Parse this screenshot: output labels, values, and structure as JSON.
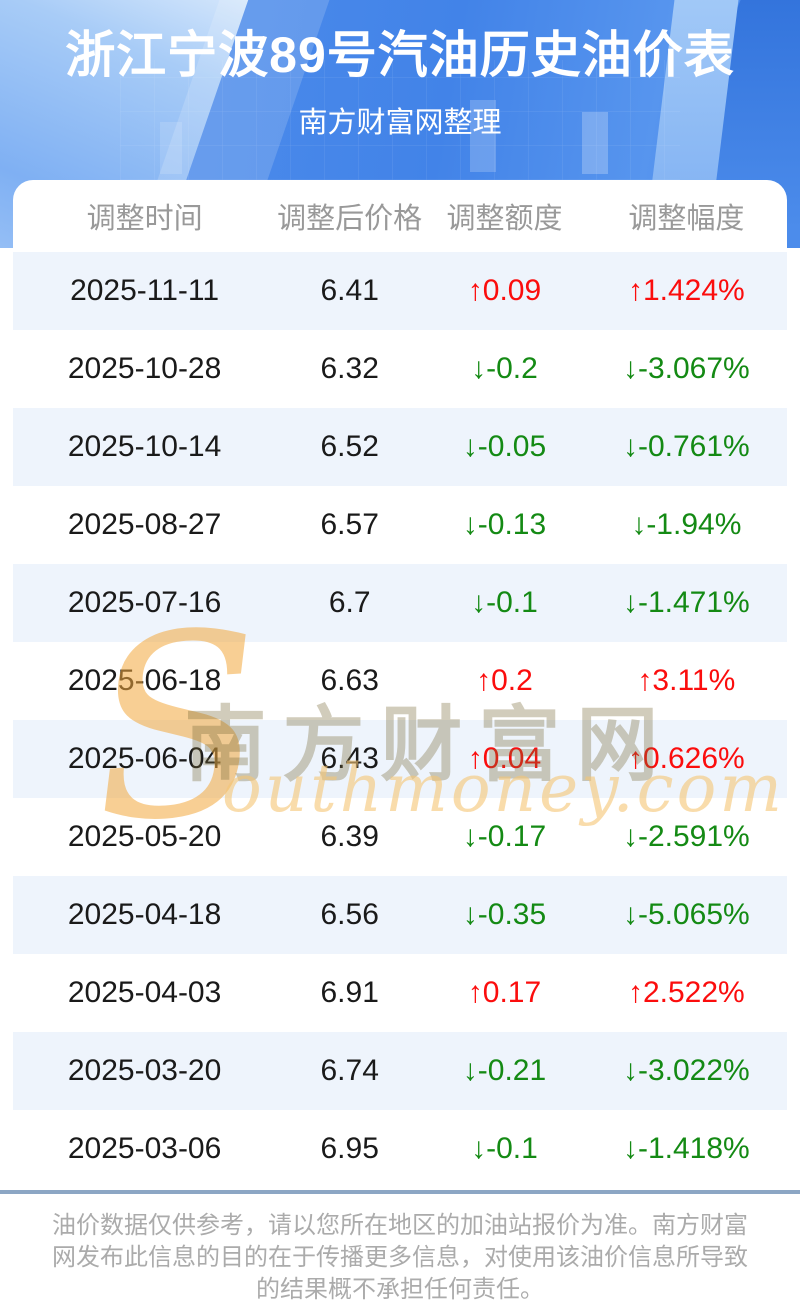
{
  "banner": {
    "title": "浙江宁波89号汽油历史油价表",
    "subtitle": "南方财富网整理"
  },
  "table": {
    "columns": [
      "调整时间",
      "调整后价格",
      "调整额度",
      "调整幅度"
    ],
    "rows": [
      {
        "date": "2025-11-11",
        "price": "6.41",
        "change": "↑0.09",
        "percent": "↑1.424%",
        "direction": "up"
      },
      {
        "date": "2025-10-28",
        "price": "6.32",
        "change": "↓-0.2",
        "percent": "↓-3.067%",
        "direction": "down"
      },
      {
        "date": "2025-10-14",
        "price": "6.52",
        "change": "↓-0.05",
        "percent": "↓-0.761%",
        "direction": "down"
      },
      {
        "date": "2025-08-27",
        "price": "6.57",
        "change": "↓-0.13",
        "percent": "↓-1.94%",
        "direction": "down"
      },
      {
        "date": "2025-07-16",
        "price": "6.7",
        "change": "↓-0.1",
        "percent": "↓-1.471%",
        "direction": "down"
      },
      {
        "date": "2025-06-18",
        "price": "6.63",
        "change": "↑0.2",
        "percent": "↑3.11%",
        "direction": "up"
      },
      {
        "date": "2025-06-04",
        "price": "6.43",
        "change": "↑0.04",
        "percent": "↑0.626%",
        "direction": "up"
      },
      {
        "date": "2025-05-20",
        "price": "6.39",
        "change": "↓-0.17",
        "percent": "↓-2.591%",
        "direction": "down"
      },
      {
        "date": "2025-04-18",
        "price": "6.56",
        "change": "↓-0.35",
        "percent": "↓-5.065%",
        "direction": "down"
      },
      {
        "date": "2025-04-03",
        "price": "6.91",
        "change": "↑0.17",
        "percent": "↑2.522%",
        "direction": "up"
      },
      {
        "date": "2025-03-20",
        "price": "6.74",
        "change": "↓-0.21",
        "percent": "↓-3.022%",
        "direction": "down"
      },
      {
        "date": "2025-03-06",
        "price": "6.95",
        "change": "↓-0.1",
        "percent": "↓-1.418%",
        "direction": "down"
      }
    ]
  },
  "watermark": {
    "en_initial": "S",
    "en_rest": "outhmoney.com",
    "cn": "南方财富网"
  },
  "footer": {
    "disclaimer": "油价数据仅供参考，请以您所在地区的加油站报价为准。南方财富网发布此信息的目的在于传播更多信息，对使用该油价信息所导致的结果概不承担任何责任。"
  },
  "colors": {
    "up": "#fb0d0d",
    "down": "#148a14",
    "stripe": "#eef4fc",
    "banner_blue": "#4283e8",
    "divider": "#8ca6c4",
    "header_text": "#999999"
  }
}
